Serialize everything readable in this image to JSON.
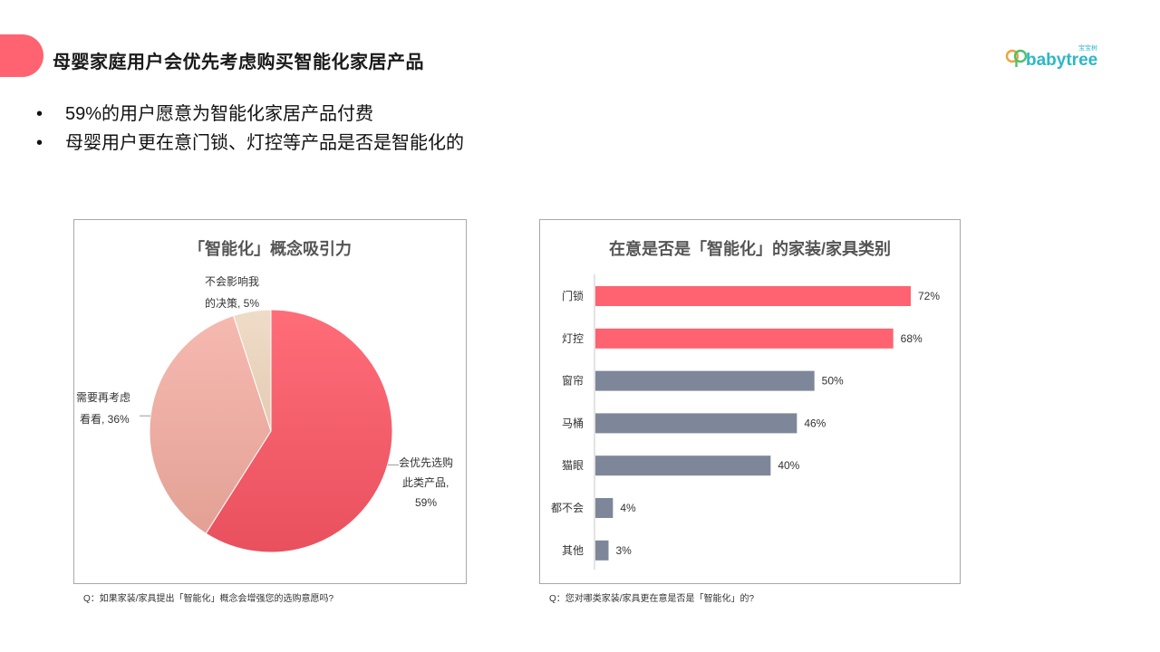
{
  "header": {
    "title": "母婴家庭用户会优先考虑购买智能化家居产品",
    "logo_text": "babytree",
    "logo_small_text": "宝宝树"
  },
  "bullets": [
    "59%的用户愿意为智能化家居产品付费",
    "母婴用户更在意门锁、灯控等产品是否是智能化的"
  ],
  "colors": {
    "accent": "#ff6270",
    "bar_highlight": "#ff6270",
    "bar_default": "#7d8799",
    "pie_main": "#ff5d6c",
    "pie_second": "#f0b1a8",
    "pie_third": "#ead5c0"
  },
  "chart_data": [
    {
      "type": "pie",
      "title": "「智能化」概念吸引力",
      "slices": [
        {
          "label_lines": [
            "会优先选购",
            "此类产品,",
            "59%"
          ],
          "value": 59
        },
        {
          "label_lines": [
            "需要再考虑",
            "看看, 36%"
          ],
          "value": 36
        },
        {
          "label_lines": [
            "不会影响我",
            "的决策, 5%"
          ],
          "value": 5
        }
      ],
      "footnote": "Q：如果家装/家具提出「智能化」概念会增强您的选购意愿吗?"
    },
    {
      "type": "bar",
      "orientation": "horizontal",
      "title": "在意是否是「智能化」的家装/家具类别",
      "categories": [
        "门锁",
        "灯控",
        "窗帘",
        "马桶",
        "猫眼",
        "都不会",
        "其他"
      ],
      "values": [
        72,
        68,
        50,
        46,
        40,
        4,
        3
      ],
      "value_labels": [
        "72%",
        "68%",
        "50%",
        "46%",
        "40%",
        "4%",
        "3%"
      ],
      "highlight_top": 2,
      "xlim": [
        0,
        80
      ],
      "footnote": "Q：您对哪类家装/家具更在意是否是「智能化」的?"
    }
  ]
}
